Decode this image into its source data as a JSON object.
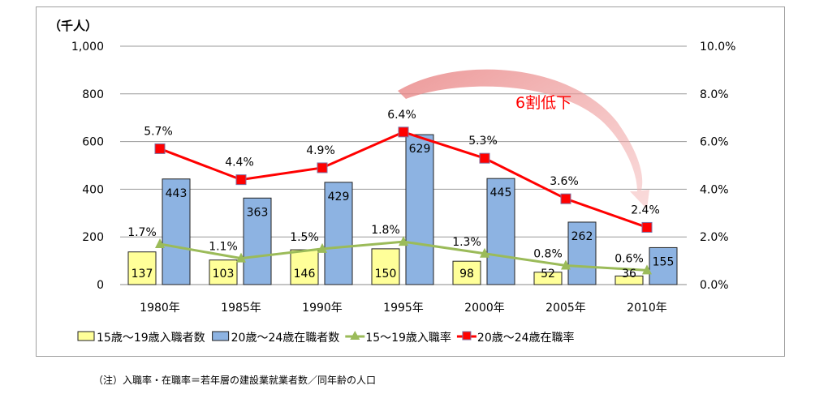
{
  "chart_data": {
    "type": "bar+line",
    "ylabel": "（千人）",
    "categories": [
      "1980年",
      "1985年",
      "1990年",
      "1995年",
      "2000年",
      "2005年",
      "2010年"
    ],
    "ylim": [
      0,
      1000
    ],
    "yticks": [
      "0",
      "200",
      "400",
      "600",
      "800",
      "1,000"
    ],
    "y2lim": [
      0,
      10
    ],
    "y2ticks": [
      "0.0%",
      "2.0%",
      "4.0%",
      "6.0%",
      "8.0%",
      "10.0%"
    ],
    "grid": true,
    "legend_position": "bottom",
    "series": [
      {
        "name": "15歳～19歳入職者数",
        "type": "bar",
        "axis": "left",
        "color": "#ffff99",
        "values": [
          137,
          103,
          146,
          150,
          98,
          52,
          36
        ],
        "labels": [
          "137",
          "103",
          "146",
          "150",
          "98",
          "52",
          "36"
        ]
      },
      {
        "name": "20歳～24歳在職者数",
        "type": "bar",
        "axis": "left",
        "color": "#8db3e2",
        "values": [
          443,
          363,
          429,
          629,
          445,
          262,
          155
        ],
        "labels": [
          "443",
          "363",
          "429",
          "629",
          "445",
          "262",
          "155"
        ]
      },
      {
        "name": "15～19歳入職率",
        "type": "line",
        "axis": "right",
        "color": "#9bbb59",
        "marker": "triangle",
        "values": [
          1.7,
          1.1,
          1.5,
          1.8,
          1.3,
          0.8,
          0.6
        ],
        "labels": [
          "1.7%",
          "1.1%",
          "1.5%",
          "1.8%",
          "1.3%",
          "0.8%",
          "0.6%"
        ]
      },
      {
        "name": "20歳～24歳在職率",
        "type": "line",
        "axis": "right",
        "color": "#ff0000",
        "marker": "square",
        "values": [
          5.7,
          4.4,
          4.9,
          6.4,
          5.3,
          3.6,
          2.4
        ],
        "labels": [
          "5.7%",
          "4.4%",
          "4.9%",
          "6.4%",
          "5.3%",
          "3.6%",
          "2.4%"
        ]
      }
    ],
    "annotation": "6割低下"
  },
  "note": "（注）入職率・在職率＝若年層の建設業就業者数／同年齢の人口"
}
